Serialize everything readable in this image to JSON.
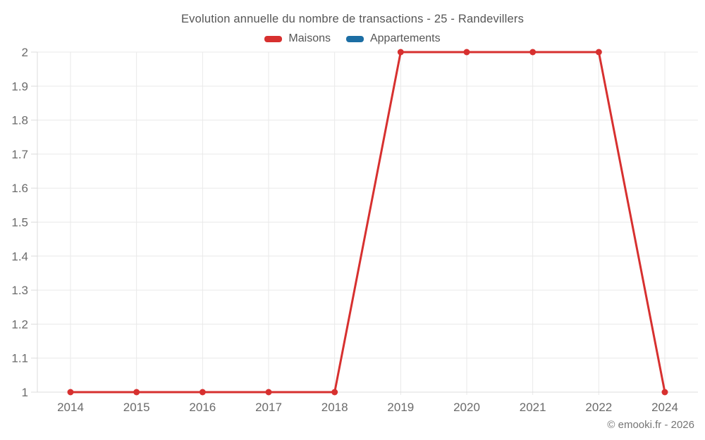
{
  "title": "Evolution annuelle du nombre de transactions - 25 - Randevillers",
  "footer": "© emooki.fr - 2026",
  "colors": {
    "maisons": "#d7302f",
    "appartements": "#1c6ea4",
    "grid": "#e9e9e9",
    "axis": "#dcdcdc",
    "tick_text": "#6b6b6b",
    "title_text": "#565656",
    "footer_text": "#757575"
  },
  "chart_data": {
    "type": "line",
    "title": "Evolution annuelle du nombre de transactions - 25 - Randevillers",
    "categories": [
      "2014",
      "2015",
      "2016",
      "2017",
      "2018",
      "2019",
      "2020",
      "2021",
      "2022",
      "2024"
    ],
    "series": [
      {
        "name": "Maisons",
        "color": "#d7302f",
        "values": [
          1,
          1,
          1,
          1,
          1,
          2,
          2,
          2,
          2,
          1
        ]
      },
      {
        "name": "Appartements",
        "color": "#1c6ea4",
        "values": [
          null,
          null,
          null,
          null,
          null,
          null,
          null,
          null,
          null,
          null
        ]
      }
    ],
    "xlabel": "",
    "ylabel": "",
    "ylim": [
      1,
      2
    ],
    "yticks": [
      "1",
      "1.1",
      "1.2",
      "1.3",
      "1.4",
      "1.5",
      "1.6",
      "1.7",
      "1.8",
      "1.9",
      "2"
    ],
    "grid": true,
    "legend_position": "top"
  }
}
